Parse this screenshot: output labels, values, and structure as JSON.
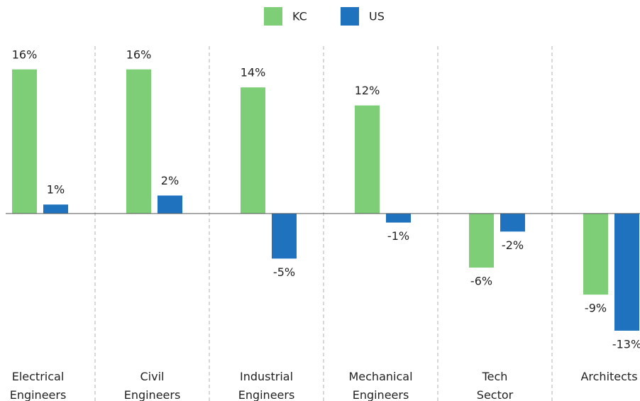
{
  "chart_data": {
    "type": "bar",
    "categories": [
      "Electrical\nEngineers",
      "Civil\nEngineers",
      "Industrial\nEngineers",
      "Mechanical\nEngineers",
      "Tech\nSector",
      "Architects"
    ],
    "series": [
      {
        "name": "KC",
        "color": "#7dce76",
        "values": [
          16,
          16,
          14,
          12,
          -6,
          -9
        ],
        "value_labels": [
          "16%",
          "16%",
          "14%",
          "12%",
          "-6%",
          "-9%"
        ]
      },
      {
        "name": "US",
        "color": "#1f73be",
        "values": [
          1,
          2,
          -5,
          -1,
          -2,
          -13
        ],
        "value_labels": [
          "1%",
          "2%",
          "-5%",
          "-1%",
          "-2%",
          "-13%"
        ]
      }
    ],
    "ylim": [
      -16,
      20
    ],
    "legend": "top"
  }
}
